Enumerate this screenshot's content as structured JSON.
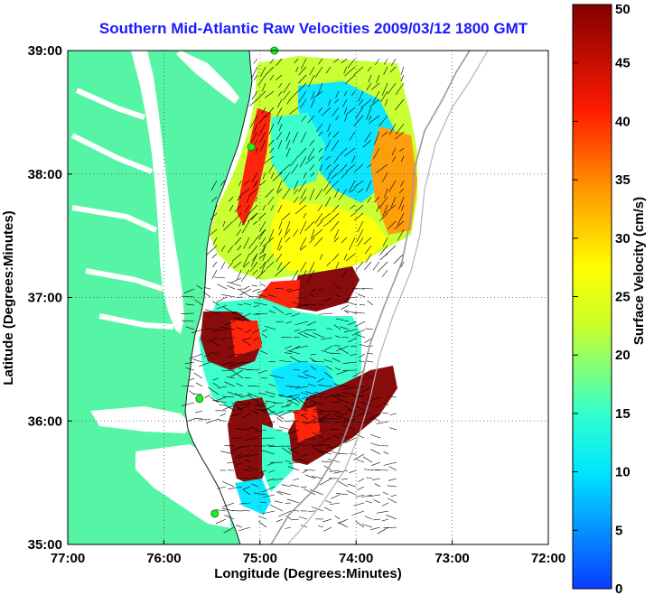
{
  "title": "Southern Mid-Atlantic Raw Velocities 2009/03/12 1800 GMT",
  "map": {
    "xlabel": "Longitude (Degrees:Minutes)",
    "ylabel": "Latitude (Degrees:Minutes)",
    "lon_range": [
      -77,
      -72
    ],
    "lat_range": [
      35,
      39
    ],
    "lon_ticks": [
      {
        "value": -77,
        "label": "77:00"
      },
      {
        "value": -76,
        "label": "76:00"
      },
      {
        "value": -75,
        "label": "75:00"
      },
      {
        "value": -74,
        "label": "74:00"
      },
      {
        "value": -73,
        "label": "73:00"
      },
      {
        "value": -72,
        "label": "72:00"
      }
    ],
    "lat_ticks": [
      {
        "value": 35,
        "label": "35:00"
      },
      {
        "value": 36,
        "label": "36:00"
      },
      {
        "value": 37,
        "label": "37:00"
      },
      {
        "value": 38,
        "label": "38:00"
      },
      {
        "value": 39,
        "label": "39:00"
      }
    ],
    "grid": "dotted",
    "land_color": "#55f5a5",
    "water_color": "#ffffff",
    "station_markers": [
      {
        "lon": -74.85,
        "lat": 39.0
      },
      {
        "lon": -75.09,
        "lat": 38.22
      },
      {
        "lon": -75.63,
        "lat": 36.18
      },
      {
        "lon": -75.47,
        "lat": 35.25
      }
    ]
  },
  "colorbar": {
    "label": "Surface Velocity (cm/s)",
    "min": 0,
    "max": 50,
    "ticks": [
      {
        "value": 0,
        "label": "0"
      },
      {
        "value": 5,
        "label": "5"
      },
      {
        "value": 10,
        "label": "10"
      },
      {
        "value": 15,
        "label": "15"
      },
      {
        "value": 20,
        "label": "20"
      },
      {
        "value": 25,
        "label": "25"
      },
      {
        "value": 30,
        "label": "30"
      },
      {
        "value": 35,
        "label": "35"
      },
      {
        "value": 40,
        "label": "40"
      },
      {
        "value": 45,
        "label": "45"
      },
      {
        "value": 50,
        "label": "50"
      }
    ],
    "colormap": "jet"
  }
}
